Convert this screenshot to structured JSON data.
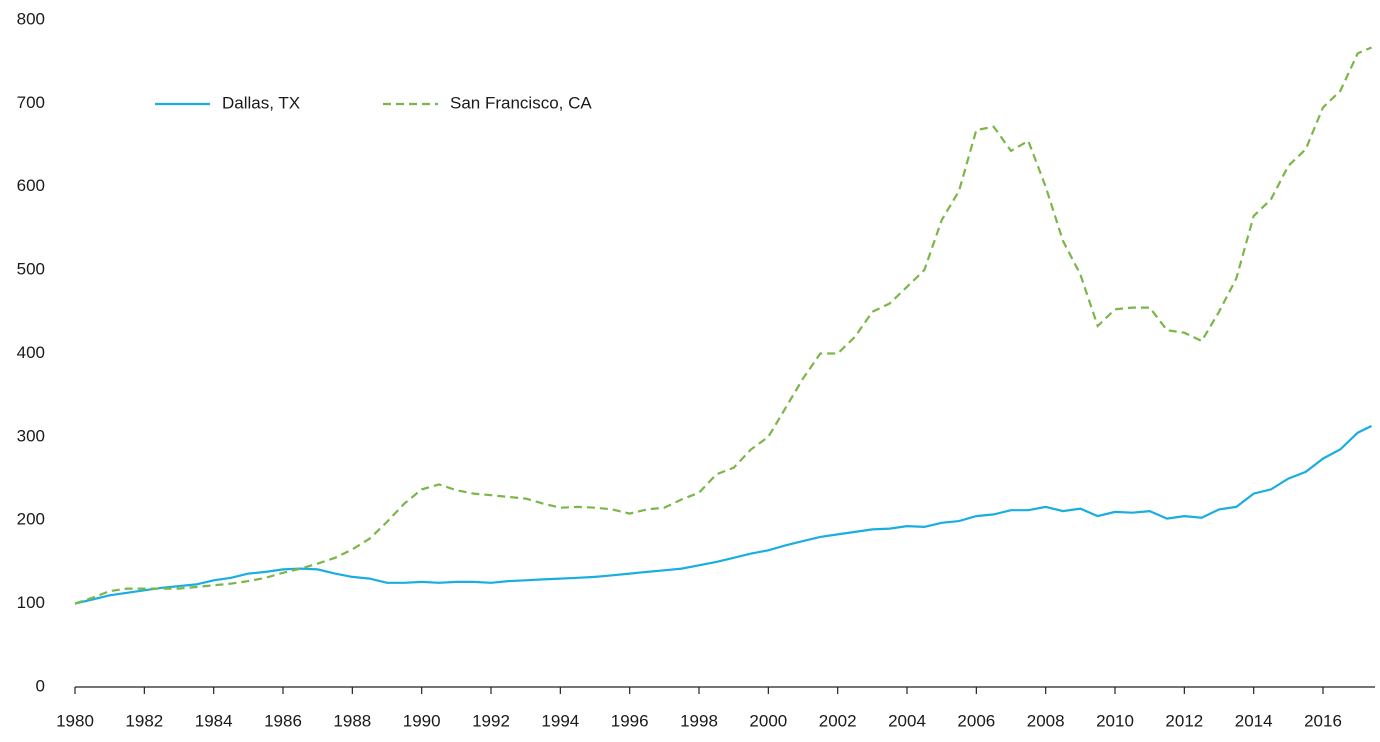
{
  "chart_data": {
    "type": "line",
    "x": [
      1980,
      1980.5,
      1981,
      1981.5,
      1982,
      1982.5,
      1983,
      1983.5,
      1984,
      1984.5,
      1985,
      1985.5,
      1986,
      1986.5,
      1987,
      1987.5,
      1988,
      1988.5,
      1989,
      1989.5,
      1990,
      1990.5,
      1991,
      1991.5,
      1992,
      1992.5,
      1993,
      1993.5,
      1994,
      1994.5,
      1995,
      1995.5,
      1996,
      1996.5,
      1997,
      1997.5,
      1998,
      1998.5,
      1999,
      1999.5,
      2000,
      2000.5,
      2001,
      2001.5,
      2002,
      2002.5,
      2003,
      2003.5,
      2004,
      2004.5,
      2005,
      2005.5,
      2006,
      2006.5,
      2007,
      2007.5,
      2008,
      2008.5,
      2009,
      2009.5,
      2010,
      2010.5,
      2011,
      2011.5,
      2012,
      2012.5,
      2013,
      2013.5,
      2014,
      2014.5,
      2015,
      2015.5,
      2016,
      2016.5,
      2017,
      2017.4
    ],
    "series": [
      {
        "name": "Dallas, TX",
        "color": "#1aaee0",
        "dash": false,
        "values": [
          100,
          105,
          110,
          113,
          116,
          119,
          121,
          123,
          128,
          131,
          136,
          138,
          141,
          142,
          141,
          136,
          132,
          130,
          125,
          125,
          126,
          125,
          126,
          126,
          125,
          127,
          128,
          129,
          130,
          131,
          132,
          134,
          136,
          138,
          140,
          142,
          146,
          150,
          155,
          160,
          164,
          170,
          175,
          180,
          183,
          186,
          189,
          190,
          193,
          192,
          197,
          199,
          205,
          207,
          212,
          212,
          216,
          211,
          214,
          205,
          210,
          209,
          211,
          202,
          205,
          203,
          213,
          216,
          232,
          237,
          250,
          258,
          274,
          285,
          305,
          313
        ]
      },
      {
        "name": "San Francisco, CA",
        "color": "#7ab648",
        "dash": true,
        "values": [
          100,
          107,
          115,
          118,
          118,
          118,
          118,
          120,
          122,
          124,
          127,
          131,
          137,
          142,
          148,
          155,
          165,
          178,
          198,
          220,
          237,
          243,
          236,
          232,
          230,
          228,
          226,
          220,
          215,
          216,
          215,
          213,
          208,
          213,
          215,
          225,
          233,
          255,
          263,
          285,
          300,
          335,
          370,
          400,
          400,
          420,
          450,
          460,
          480,
          500,
          560,
          595,
          668,
          672,
          643,
          655,
          600,
          535,
          495,
          433,
          453,
          455,
          455,
          428,
          425,
          415,
          450,
          490,
          565,
          585,
          625,
          645,
          695,
          715,
          760,
          767
        ]
      }
    ],
    "xlim": [
      1980,
      2017.5
    ],
    "xticks": [
      1980,
      1982,
      1984,
      1986,
      1988,
      1990,
      1992,
      1994,
      1996,
      1998,
      2000,
      2002,
      2004,
      2006,
      2008,
      2010,
      2012,
      2014,
      2016
    ],
    "ylim": [
      0,
      800
    ],
    "yticks": [
      0,
      100,
      200,
      300,
      400,
      500,
      600,
      700,
      800
    ],
    "grid": false,
    "legend": "upper left"
  }
}
